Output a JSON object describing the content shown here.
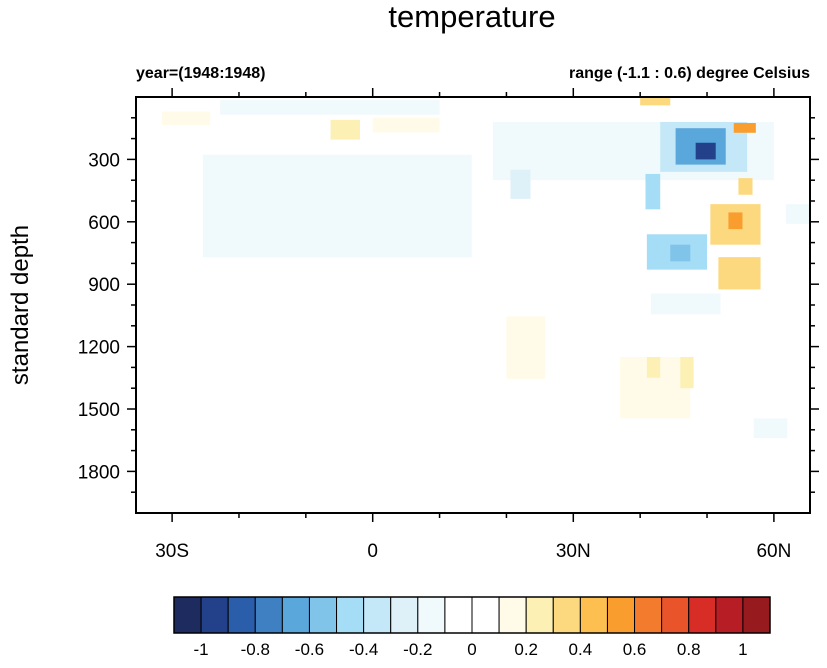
{
  "chart_data": {
    "type": "heatmap",
    "title": "temperature",
    "subtitle_left": "year=(1948:1948)",
    "subtitle_right": "range (-1.1 : 0.6) degree Celsius",
    "xlabel": "",
    "ylabel": "standard depth",
    "xlim": [
      -35.4,
      65.4
    ],
    "ylim": [
      0,
      2000
    ],
    "y_inverted": true,
    "x_ticks": [
      {
        "value": -30,
        "label": "30S"
      },
      {
        "value": 0,
        "label": "0"
      },
      {
        "value": 30,
        "label": "30N"
      },
      {
        "value": 60,
        "label": "60N"
      }
    ],
    "y_ticks": [
      {
        "value": 300,
        "label": "300"
      },
      {
        "value": 600,
        "label": "600"
      },
      {
        "value": 900,
        "label": "900"
      },
      {
        "value": 1200,
        "label": "1200"
      },
      {
        "value": 1500,
        "label": "1500"
      },
      {
        "value": 1800,
        "label": "1800"
      }
    ],
    "colorbar": {
      "levels": [
        -1,
        -0.9,
        -0.8,
        -0.7,
        -0.6,
        -0.5,
        -0.4,
        -0.3,
        -0.2,
        -0.1,
        0,
        0.1,
        0.2,
        0.3,
        0.4,
        0.5,
        0.6,
        0.7,
        0.8,
        0.9,
        1
      ],
      "labels": [
        "-1",
        "-0.8",
        "-0.6",
        "-0.4",
        "-0.2",
        "0",
        "0.2",
        "0.4",
        "0.6",
        "0.8",
        "1"
      ],
      "colors": [
        "#1d2b5e",
        "#22418a",
        "#2a5daa",
        "#3f80c2",
        "#5aa7db",
        "#80c4e9",
        "#a5dcf6",
        "#c4e8f7",
        "#dff1f8",
        "#f0f9fc",
        "#ffffff",
        "#ffffff",
        "#fffbe8",
        "#fdf0b5",
        "#fcd87f",
        "#fdbf4f",
        "#f99d2e",
        "#f27b2d",
        "#e9542b",
        "#d82c27",
        "#b71d25",
        "#971a1e"
      ]
    },
    "cells": [
      {
        "lat": [
          -25.4,
          14.8
        ],
        "depth": [
          278,
          770
        ],
        "value": -0.15
      },
      {
        "lat": [
          -22.8,
          10
        ],
        "depth": [
          15,
          85
        ],
        "value": -0.15
      },
      {
        "lat": [
          18,
          60
        ],
        "depth": [
          120,
          400
        ],
        "value": -0.15
      },
      {
        "lat": [
          18,
          62
        ],
        "depth": [
          400,
          1000
        ],
        "value": -0.1
      },
      {
        "lat": [
          -31.5,
          -24.3
        ],
        "depth": [
          70,
          135
        ],
        "value": 0.15
      },
      {
        "lat": [
          -6.3,
          -1.9
        ],
        "depth": [
          110,
          205
        ],
        "value": 0.25
      },
      {
        "lat": [
          0,
          10
        ],
        "depth": [
          100,
          170
        ],
        "value": 0.15
      },
      {
        "lat": [
          20.6,
          23.6
        ],
        "depth": [
          350,
          490
        ],
        "value": -0.3
      },
      {
        "lat": [
          40,
          44.5
        ],
        "depth": [
          0,
          40
        ],
        "value": 0.35
      },
      {
        "lat": [
          43,
          56
        ],
        "depth": [
          120,
          360
        ],
        "value": -0.35
      },
      {
        "lat": [
          45.3,
          52.8
        ],
        "depth": [
          150,
          325
        ],
        "value": -0.7
      },
      {
        "lat": [
          48.3,
          51.3
        ],
        "depth": [
          220,
          300
        ],
        "value": -1.0
      },
      {
        "lat": [
          40.8,
          43
        ],
        "depth": [
          370,
          540
        ],
        "value": -0.45
      },
      {
        "lat": [
          41,
          50
        ],
        "depth": [
          660,
          830
        ],
        "value": -0.45
      },
      {
        "lat": [
          44.5,
          47.5
        ],
        "depth": [
          710,
          790
        ],
        "value": -0.6
      },
      {
        "lat": [
          50.5,
          58
        ],
        "depth": [
          515,
          710
        ],
        "value": 0.35
      },
      {
        "lat": [
          53.2,
          55.3
        ],
        "depth": [
          555,
          635
        ],
        "value": 0.55
      },
      {
        "lat": [
          51.7,
          58
        ],
        "depth": [
          770,
          925
        ],
        "value": 0.3
      },
      {
        "lat": [
          54,
          57.3
        ],
        "depth": [
          125,
          172
        ],
        "value": 0.5
      },
      {
        "lat": [
          54.7,
          56.8
        ],
        "depth": [
          390,
          470
        ],
        "value": 0.3
      },
      {
        "lat": [
          61.8,
          65.4
        ],
        "depth": [
          515,
          610
        ],
        "value": -0.2
      },
      {
        "lat": [
          41.6,
          52
        ],
        "depth": [
          945,
          1045
        ],
        "value": -0.2
      },
      {
        "lat": [
          20,
          25.8
        ],
        "depth": [
          1055,
          1355
        ],
        "value": 0.15
      },
      {
        "lat": [
          33.3,
          39.3
        ],
        "depth": [
          1140,
          1260
        ],
        "value": -0.1
      },
      {
        "lat": [
          37,
          47.5
        ],
        "depth": [
          1250,
          1545
        ],
        "value": 0.15
      },
      {
        "lat": [
          41,
          43
        ],
        "depth": [
          1250,
          1350
        ],
        "value": 0.25
      },
      {
        "lat": [
          46,
          48
        ],
        "depth": [
          1250,
          1400
        ],
        "value": 0.25
      },
      {
        "lat": [
          48.3,
          65.4
        ],
        "depth": [
          1545,
          1976
        ],
        "value": -0.1
      },
      {
        "lat": [
          57,
          62
        ],
        "depth": [
          1545,
          1640
        ],
        "value": -0.2
      }
    ]
  }
}
